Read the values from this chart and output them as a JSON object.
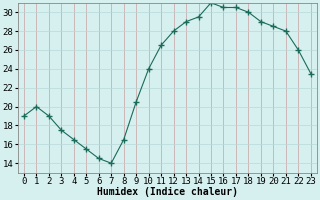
{
  "x": [
    0,
    1,
    2,
    3,
    4,
    5,
    6,
    7,
    8,
    9,
    10,
    11,
    12,
    13,
    14,
    15,
    16,
    17,
    18,
    19,
    20,
    21,
    22,
    23
  ],
  "y": [
    19.0,
    20.0,
    19.0,
    17.5,
    16.5,
    15.5,
    14.5,
    14.0,
    16.5,
    20.5,
    24.0,
    26.5,
    28.0,
    29.0,
    29.5,
    31.0,
    30.5,
    30.5,
    30.0,
    29.0,
    28.5,
    28.0,
    26.0,
    23.5
  ],
  "line_color": "#1a6b5a",
  "marker": "+",
  "marker_size": 4,
  "bg_color": "#d6f0ef",
  "grid_color_major": "#c8a0a0",
  "grid_color_minor": "#b8d8d8",
  "xlabel": "Humidex (Indice chaleur)",
  "ylim": [
    13,
    31
  ],
  "yticks": [
    14,
    16,
    18,
    20,
    22,
    24,
    26,
    28,
    30
  ],
  "xlim": [
    -0.5,
    23.5
  ],
  "xtick_labels": [
    "0",
    "1",
    "2",
    "3",
    "4",
    "5",
    "6",
    "7",
    "8",
    "9",
    "10",
    "11",
    "12",
    "13",
    "14",
    "15",
    "16",
    "17",
    "18",
    "19",
    "20",
    "21",
    "22",
    "23"
  ],
  "xlabel_fontsize": 7,
  "tick_fontsize": 6.5
}
